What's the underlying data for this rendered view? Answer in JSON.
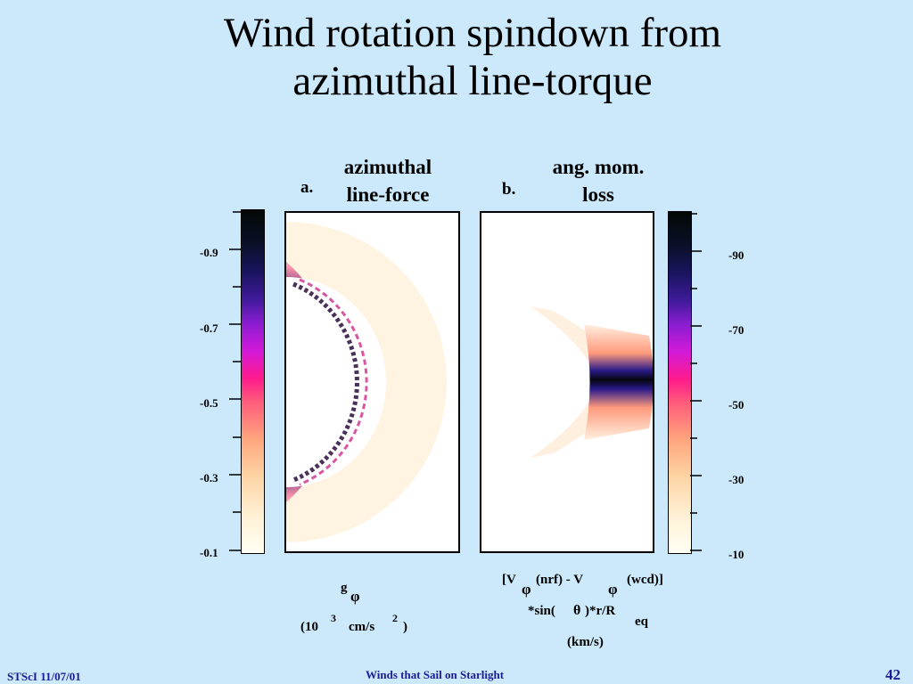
{
  "slide": {
    "title_line1": "Wind rotation spindown from",
    "title_line2": "azimuthal line-torque"
  },
  "panel_a": {
    "letter": "a.",
    "label_line1": "azimuthal",
    "label_line2": "line-force",
    "ticks": [
      "-0.9",
      "-0.7",
      "-0.5",
      "-0.3",
      "-0.1"
    ],
    "unit_symbol": "g",
    "unit_sub": "φ",
    "unit_paren_open": "(10",
    "unit_exp": "3",
    "unit_cm_s": "cm/s",
    "unit_exp2": "2",
    "unit_paren_close": ")"
  },
  "panel_b": {
    "letter": "b.",
    "label_line1": "ang. mom.",
    "label_line2": "loss",
    "ticks": [
      "-90",
      "-70",
      "-50",
      "-30",
      "-10"
    ],
    "formula_open": "[V",
    "formula_phi1": "φ",
    "formula_nrf": "(nrf) - V",
    "formula_phi2": "φ",
    "formula_wcd": "(wcd)]",
    "formula_sin": "*sin(",
    "formula_theta": "θ",
    "formula_rR": ")*r/R",
    "formula_eq": "eq",
    "formula_units": "(km/s)"
  },
  "footer": {
    "left": "STScI 11/07/01",
    "center": "Winds that Sail on Starlight",
    "page": "42"
  }
}
